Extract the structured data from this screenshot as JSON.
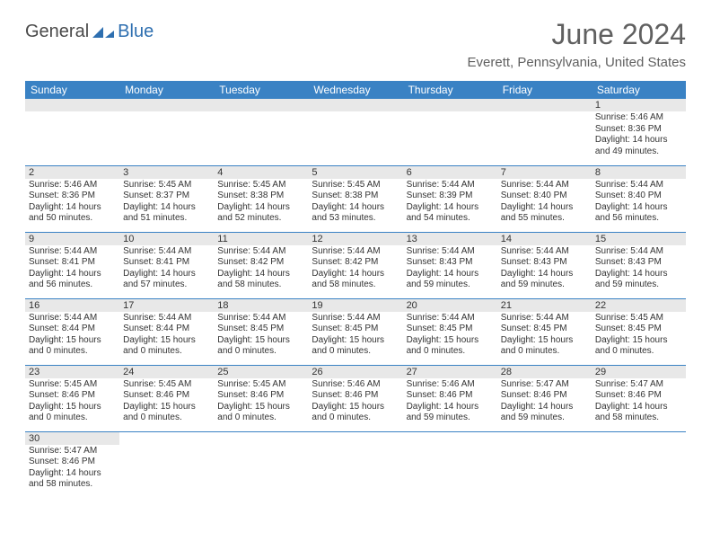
{
  "logo": {
    "text1": "General",
    "text2": "Blue"
  },
  "title": "June 2024",
  "location": "Everett, Pennsylvania, United States",
  "colors": {
    "header_bg": "#3a82c4",
    "header_fg": "#ffffff",
    "daynum_bg": "#e8e8e8",
    "cell_border": "#3a82c4",
    "title_color": "#606060",
    "logo_gray": "#4a4a4a",
    "logo_blue": "#2e6fb0"
  },
  "weekdays": [
    "Sunday",
    "Monday",
    "Tuesday",
    "Wednesday",
    "Thursday",
    "Friday",
    "Saturday"
  ],
  "weeks": [
    [
      null,
      null,
      null,
      null,
      null,
      null,
      {
        "n": "1",
        "sunrise": "Sunrise: 5:46 AM",
        "sunset": "Sunset: 8:36 PM",
        "daylight": "Daylight: 14 hours and 49 minutes."
      }
    ],
    [
      {
        "n": "2",
        "sunrise": "Sunrise: 5:46 AM",
        "sunset": "Sunset: 8:36 PM",
        "daylight": "Daylight: 14 hours and 50 minutes."
      },
      {
        "n": "3",
        "sunrise": "Sunrise: 5:45 AM",
        "sunset": "Sunset: 8:37 PM",
        "daylight": "Daylight: 14 hours and 51 minutes."
      },
      {
        "n": "4",
        "sunrise": "Sunrise: 5:45 AM",
        "sunset": "Sunset: 8:38 PM",
        "daylight": "Daylight: 14 hours and 52 minutes."
      },
      {
        "n": "5",
        "sunrise": "Sunrise: 5:45 AM",
        "sunset": "Sunset: 8:38 PM",
        "daylight": "Daylight: 14 hours and 53 minutes."
      },
      {
        "n": "6",
        "sunrise": "Sunrise: 5:44 AM",
        "sunset": "Sunset: 8:39 PM",
        "daylight": "Daylight: 14 hours and 54 minutes."
      },
      {
        "n": "7",
        "sunrise": "Sunrise: 5:44 AM",
        "sunset": "Sunset: 8:40 PM",
        "daylight": "Daylight: 14 hours and 55 minutes."
      },
      {
        "n": "8",
        "sunrise": "Sunrise: 5:44 AM",
        "sunset": "Sunset: 8:40 PM",
        "daylight": "Daylight: 14 hours and 56 minutes."
      }
    ],
    [
      {
        "n": "9",
        "sunrise": "Sunrise: 5:44 AM",
        "sunset": "Sunset: 8:41 PM",
        "daylight": "Daylight: 14 hours and 56 minutes."
      },
      {
        "n": "10",
        "sunrise": "Sunrise: 5:44 AM",
        "sunset": "Sunset: 8:41 PM",
        "daylight": "Daylight: 14 hours and 57 minutes."
      },
      {
        "n": "11",
        "sunrise": "Sunrise: 5:44 AM",
        "sunset": "Sunset: 8:42 PM",
        "daylight": "Daylight: 14 hours and 58 minutes."
      },
      {
        "n": "12",
        "sunrise": "Sunrise: 5:44 AM",
        "sunset": "Sunset: 8:42 PM",
        "daylight": "Daylight: 14 hours and 58 minutes."
      },
      {
        "n": "13",
        "sunrise": "Sunrise: 5:44 AM",
        "sunset": "Sunset: 8:43 PM",
        "daylight": "Daylight: 14 hours and 59 minutes."
      },
      {
        "n": "14",
        "sunrise": "Sunrise: 5:44 AM",
        "sunset": "Sunset: 8:43 PM",
        "daylight": "Daylight: 14 hours and 59 minutes."
      },
      {
        "n": "15",
        "sunrise": "Sunrise: 5:44 AM",
        "sunset": "Sunset: 8:43 PM",
        "daylight": "Daylight: 14 hours and 59 minutes."
      }
    ],
    [
      {
        "n": "16",
        "sunrise": "Sunrise: 5:44 AM",
        "sunset": "Sunset: 8:44 PM",
        "daylight": "Daylight: 15 hours and 0 minutes."
      },
      {
        "n": "17",
        "sunrise": "Sunrise: 5:44 AM",
        "sunset": "Sunset: 8:44 PM",
        "daylight": "Daylight: 15 hours and 0 minutes."
      },
      {
        "n": "18",
        "sunrise": "Sunrise: 5:44 AM",
        "sunset": "Sunset: 8:45 PM",
        "daylight": "Daylight: 15 hours and 0 minutes."
      },
      {
        "n": "19",
        "sunrise": "Sunrise: 5:44 AM",
        "sunset": "Sunset: 8:45 PM",
        "daylight": "Daylight: 15 hours and 0 minutes."
      },
      {
        "n": "20",
        "sunrise": "Sunrise: 5:44 AM",
        "sunset": "Sunset: 8:45 PM",
        "daylight": "Daylight: 15 hours and 0 minutes."
      },
      {
        "n": "21",
        "sunrise": "Sunrise: 5:44 AM",
        "sunset": "Sunset: 8:45 PM",
        "daylight": "Daylight: 15 hours and 0 minutes."
      },
      {
        "n": "22",
        "sunrise": "Sunrise: 5:45 AM",
        "sunset": "Sunset: 8:45 PM",
        "daylight": "Daylight: 15 hours and 0 minutes."
      }
    ],
    [
      {
        "n": "23",
        "sunrise": "Sunrise: 5:45 AM",
        "sunset": "Sunset: 8:46 PM",
        "daylight": "Daylight: 15 hours and 0 minutes."
      },
      {
        "n": "24",
        "sunrise": "Sunrise: 5:45 AM",
        "sunset": "Sunset: 8:46 PM",
        "daylight": "Daylight: 15 hours and 0 minutes."
      },
      {
        "n": "25",
        "sunrise": "Sunrise: 5:45 AM",
        "sunset": "Sunset: 8:46 PM",
        "daylight": "Daylight: 15 hours and 0 minutes."
      },
      {
        "n": "26",
        "sunrise": "Sunrise: 5:46 AM",
        "sunset": "Sunset: 8:46 PM",
        "daylight": "Daylight: 15 hours and 0 minutes."
      },
      {
        "n": "27",
        "sunrise": "Sunrise: 5:46 AM",
        "sunset": "Sunset: 8:46 PM",
        "daylight": "Daylight: 14 hours and 59 minutes."
      },
      {
        "n": "28",
        "sunrise": "Sunrise: 5:47 AM",
        "sunset": "Sunset: 8:46 PM",
        "daylight": "Daylight: 14 hours and 59 minutes."
      },
      {
        "n": "29",
        "sunrise": "Sunrise: 5:47 AM",
        "sunset": "Sunset: 8:46 PM",
        "daylight": "Daylight: 14 hours and 58 minutes."
      }
    ],
    [
      {
        "n": "30",
        "sunrise": "Sunrise: 5:47 AM",
        "sunset": "Sunset: 8:46 PM",
        "daylight": "Daylight: 14 hours and 58 minutes."
      },
      null,
      null,
      null,
      null,
      null,
      null
    ]
  ]
}
